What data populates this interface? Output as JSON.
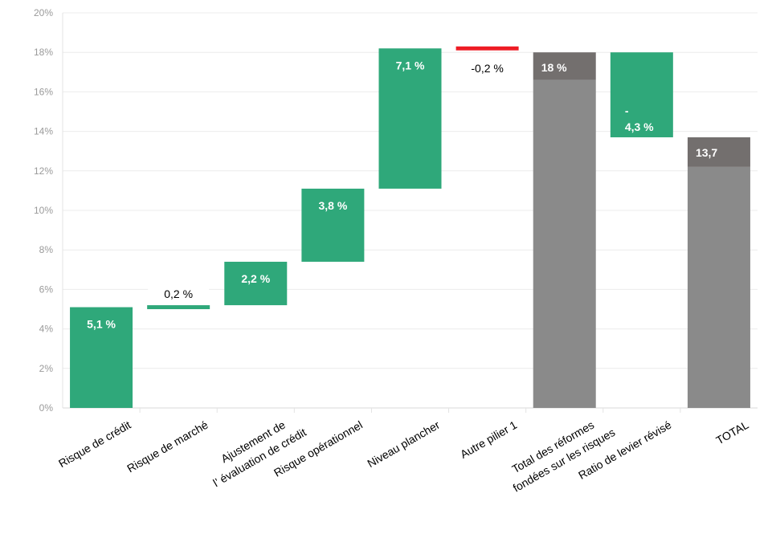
{
  "chart_data": {
    "type": "bar",
    "subtype": "waterfall",
    "title": "",
    "xlabel": "",
    "ylabel": "",
    "ylim": [
      0,
      20
    ],
    "yticks": [
      0,
      2,
      4,
      6,
      8,
      10,
      12,
      14,
      16,
      18,
      20
    ],
    "ytick_labels": [
      "0%",
      "2%",
      "4%",
      "6%",
      "8%",
      "10%",
      "12%",
      "14%",
      "16%",
      "18%",
      "20%"
    ],
    "grid": true,
    "legend": "none",
    "colors": {
      "increase": "#2fa87a",
      "decrease": "#ee1c25",
      "total_base": "#8a8a8a",
      "total_cap": "#736f6e"
    },
    "bars": [
      {
        "category": "Risque de crédit",
        "label": "5,1 %",
        "start": 0,
        "end": 5.1,
        "kind": "increase"
      },
      {
        "category": "Risque de marché",
        "label": "0,2 %",
        "start": 5.0,
        "end": 5.2,
        "kind": "increase"
      },
      {
        "category": "Ajustement de\nl’   évaluation de crédit",
        "label": "2,2 %",
        "start": 5.2,
        "end": 7.4,
        "kind": "increase"
      },
      {
        "category": "Risque opérationnel",
        "label": "3,8 %",
        "start": 7.4,
        "end": 11.1,
        "kind": "increase"
      },
      {
        "category": "Niveau plancher",
        "label": "7,1 %",
        "start": 11.1,
        "end": 18.2,
        "kind": "increase"
      },
      {
        "category": "Autre pilier 1",
        "label": "-0,2 %",
        "start": 18.1,
        "end": 18.3,
        "kind": "decrease"
      },
      {
        "category": "Total des réformes\nfondées sur les risques",
        "label": "18 %",
        "start": 0,
        "end": 18.0,
        "cap": 16.6,
        "kind": "total"
      },
      {
        "category": "Ratio de levier révisé",
        "label": "-\n4,3 %",
        "start": 13.7,
        "end": 18.0,
        "kind": "increase"
      },
      {
        "category": "TOTAL",
        "label": "13,7",
        "start": 0,
        "end": 13.7,
        "cap": 12.2,
        "kind": "total"
      }
    ]
  }
}
